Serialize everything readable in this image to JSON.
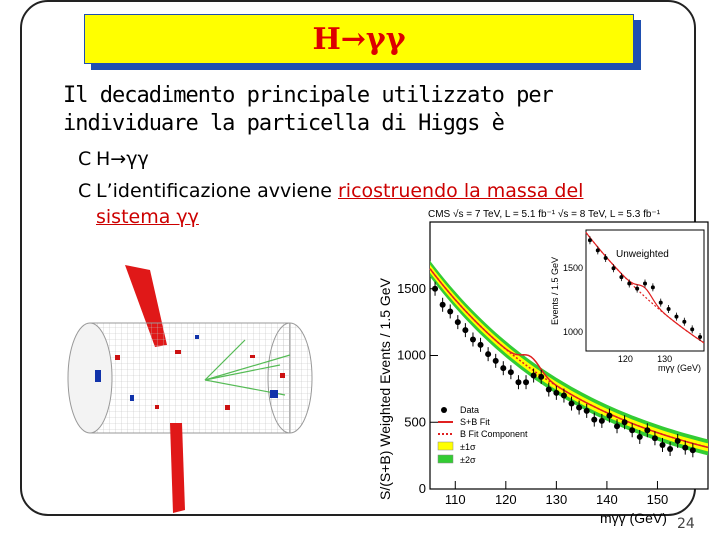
{
  "slide": {
    "title": "H→γγ",
    "intro_line1": "Il decadimento principale utilizzato per",
    "intro_line2": "individuare la particella di Higgs è",
    "bullet_mark": "C",
    "bullet1": "H→γγ",
    "bullet2_prefix": "L’identificazione avviene ",
    "bullet2_link": "ricostruendo la massa del",
    "bullet2_line2": "sistema γγ",
    "page_number": "24"
  },
  "chart_data": {
    "type": "scatter",
    "header": "CMS   √s = 7 TeV, L = 5.1 fb⁻¹  √s = 8 TeV, L = 5.3 fb⁻¹",
    "xlabel": "mγγ (GeV)",
    "ylabel": "S/(S+B) Weighted Events / 1.5 GeV",
    "xlim": [
      105,
      160
    ],
    "ylim": [
      0,
      2000
    ],
    "xticks": [
      "110",
      "120",
      "130",
      "140",
      "150"
    ],
    "yticks": [
      "0",
      "500",
      "1000",
      "1500"
    ],
    "legend": [
      "Data",
      "S+B Fit",
      "B Fit Component",
      "±1σ",
      "±2σ"
    ],
    "colors": {
      "fit": "#e02020",
      "bfit": "#e02020",
      "band1": "#ffff00",
      "band2": "#33cc33"
    },
    "x": [
      106,
      107.5,
      109,
      110.5,
      112,
      113.5,
      115,
      116.5,
      118,
      119.5,
      121,
      122.5,
      124,
      125.5,
      127,
      128.5,
      130,
      131.5,
      133,
      134.5,
      136,
      137.5,
      139,
      140.5,
      142,
      143.5,
      145,
      146.5,
      148,
      149.5,
      151,
      152.5,
      154,
      155.5,
      157
    ],
    "y": [
      1500,
      1380,
      1330,
      1250,
      1190,
      1120,
      1080,
      1010,
      960,
      905,
      875,
      800,
      800,
      850,
      840,
      745,
      720,
      700,
      640,
      610,
      585,
      520,
      510,
      550,
      470,
      500,
      440,
      390,
      440,
      380,
      330,
      300,
      360,
      310,
      290
    ],
    "inset": {
      "label": "Unweighted",
      "xlabel": "mγγ (GeV)",
      "ylabel": "Events / 1.5 GeV",
      "xlim": [
        110,
        140
      ],
      "ylim": [
        850,
        1800
      ],
      "xticks": [
        "120",
        "130"
      ],
      "yticks": [
        "1000",
        "1500"
      ],
      "x": [
        111,
        113,
        115,
        117,
        119,
        121,
        123,
        125,
        127,
        129,
        131,
        133,
        135,
        137,
        139
      ],
      "y": [
        1720,
        1640,
        1580,
        1500,
        1430,
        1380,
        1340,
        1380,
        1350,
        1230,
        1180,
        1120,
        1080,
        1020,
        960
      ]
    }
  },
  "event_display": {
    "description_hidden": ""
  }
}
